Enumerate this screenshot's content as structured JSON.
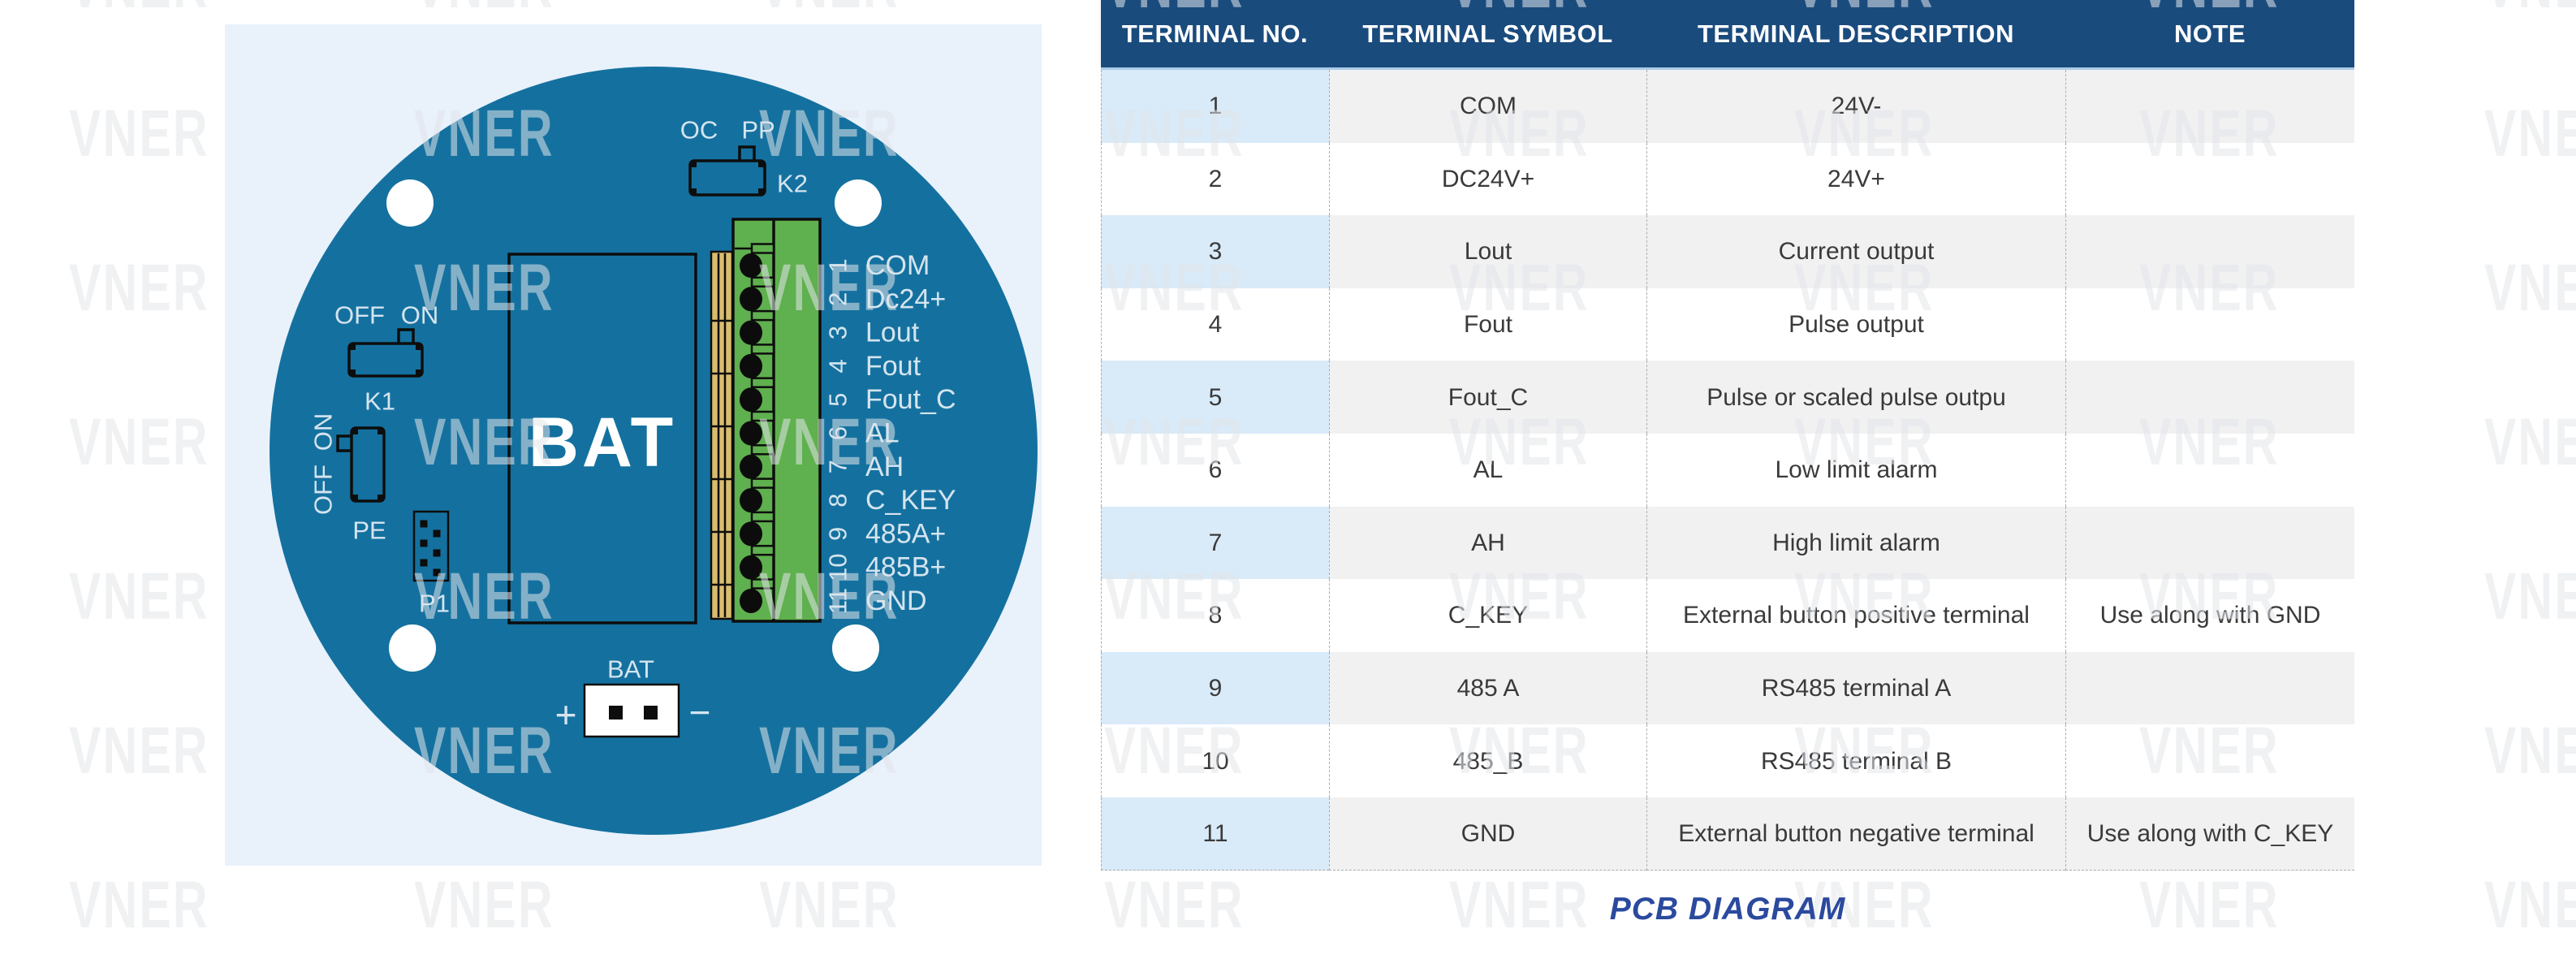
{
  "watermark": {
    "text": "VNER"
  },
  "caption": "PCB DIAGRAM",
  "colors": {
    "board-blue": "#14719F",
    "board-green": "#5FB04E",
    "board-tan": "#D9BD6E",
    "pcb-label": "#D5E4EF",
    "header-bg": "#1A4B7D",
    "row-blue": "#D9EAF8",
    "row-gray": "#F1F1F2",
    "caption-blue": "#2B4A9E",
    "panel": "#E9F1FB"
  },
  "pcb": {
    "switch_k2": {
      "top_left": "OC",
      "top_right": "PP",
      "label": "K2"
    },
    "switch_k1": {
      "top_left": "OFF",
      "top_right": "ON",
      "label": "K1"
    },
    "switch_pe": {
      "side_top": "ON",
      "side_bottom": "OFF",
      "label": "PE"
    },
    "header_p1": {
      "label": "P1"
    },
    "battery_block_label": "BAT",
    "battery_connector": {
      "label": "BAT",
      "plus": "+",
      "minus": "−"
    },
    "terminals": [
      {
        "no": "1",
        "label": "COM"
      },
      {
        "no": "2",
        "label": "Dc24+"
      },
      {
        "no": "3",
        "label": "Lout"
      },
      {
        "no": "4",
        "label": "Fout"
      },
      {
        "no": "5",
        "label": "Fout_C"
      },
      {
        "no": "6",
        "label": "AL"
      },
      {
        "no": "7",
        "label": "AH"
      },
      {
        "no": "8",
        "label": "C_KEY"
      },
      {
        "no": "9",
        "label": "485A+"
      },
      {
        "no": "10",
        "label": "485B+"
      },
      {
        "no": "11",
        "label": "GND"
      }
    ]
  },
  "table": {
    "headers": [
      "TERMINAL NO.",
      "TERMINAL SYMBOL",
      "TERMINAL DESCRIPTION",
      "NOTE"
    ],
    "rows": [
      [
        "1",
        "COM",
        "24V-",
        ""
      ],
      [
        "2",
        "DC24V+",
        "24V+",
        ""
      ],
      [
        "3",
        "Lout",
        "Current output",
        ""
      ],
      [
        "4",
        "Fout",
        "Pulse output",
        ""
      ],
      [
        "5",
        "Fout_C",
        "Pulse or scaled pulse outpu",
        ""
      ],
      [
        "6",
        "AL",
        "Low limit alarm",
        ""
      ],
      [
        "7",
        "AH",
        "High limit alarm",
        ""
      ],
      [
        "8",
        "C_KEY",
        "External button positive terminal",
        "Use along with GND"
      ],
      [
        "9",
        "485 A",
        "RS485 terminal A",
        ""
      ],
      [
        "10",
        "485_B",
        "RS485 terminal B",
        ""
      ],
      [
        "11",
        "GND",
        "External button negative terminal",
        "Use along with C_KEY"
      ]
    ]
  }
}
